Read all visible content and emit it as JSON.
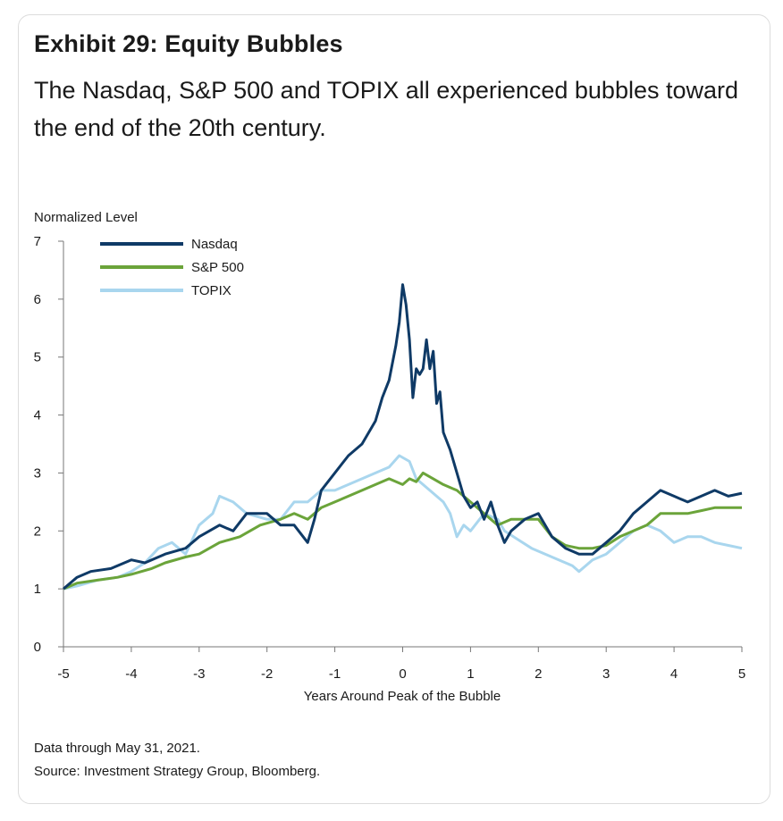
{
  "header": {
    "title": "Exhibit 29: Equity Bubbles",
    "subtitle": "The Nasdaq, S&P 500 and TOPIX all experienced bubbles toward the end of the 20th century."
  },
  "footer": {
    "note": "Data through May 31, 2021.",
    "source": "Source: Investment Strategy Group, Bloomberg."
  },
  "chart_data": {
    "type": "line",
    "ylabel": "Normalized Level",
    "xlabel": "Years Around Peak of the Bubble",
    "xlim": [
      -5,
      5
    ],
    "ylim": [
      0,
      7
    ],
    "xticks": [
      "-5",
      "-4",
      "-3",
      "-2",
      "-1",
      "0",
      "1",
      "2",
      "3",
      "4",
      "5"
    ],
    "yticks": [
      "0",
      "1",
      "2",
      "3",
      "4",
      "5",
      "6",
      "7"
    ],
    "grid": false,
    "legend": "top-left",
    "series": [
      {
        "name": "Nasdaq",
        "color": "#0f3a66",
        "points": [
          [
            -5,
            1.0
          ],
          [
            -4.8,
            1.2
          ],
          [
            -4.6,
            1.3
          ],
          [
            -4.3,
            1.35
          ],
          [
            -4.0,
            1.5
          ],
          [
            -3.8,
            1.45
          ],
          [
            -3.5,
            1.6
          ],
          [
            -3.2,
            1.7
          ],
          [
            -3.0,
            1.9
          ],
          [
            -2.7,
            2.1
          ],
          [
            -2.5,
            2.0
          ],
          [
            -2.3,
            2.3
          ],
          [
            -2.0,
            2.3
          ],
          [
            -1.8,
            2.1
          ],
          [
            -1.6,
            2.1
          ],
          [
            -1.4,
            1.8
          ],
          [
            -1.3,
            2.2
          ],
          [
            -1.2,
            2.7
          ],
          [
            -1.0,
            3.0
          ],
          [
            -0.8,
            3.3
          ],
          [
            -0.6,
            3.5
          ],
          [
            -0.4,
            3.9
          ],
          [
            -0.3,
            4.3
          ],
          [
            -0.2,
            4.6
          ],
          [
            -0.1,
            5.2
          ],
          [
            -0.05,
            5.6
          ],
          [
            0,
            6.25
          ],
          [
            0.05,
            5.9
          ],
          [
            0.1,
            5.3
          ],
          [
            0.15,
            4.3
          ],
          [
            0.2,
            4.8
          ],
          [
            0.25,
            4.7
          ],
          [
            0.3,
            4.8
          ],
          [
            0.35,
            5.3
          ],
          [
            0.4,
            4.8
          ],
          [
            0.45,
            5.1
          ],
          [
            0.5,
            4.2
          ],
          [
            0.55,
            4.4
          ],
          [
            0.6,
            3.7
          ],
          [
            0.7,
            3.4
          ],
          [
            0.8,
            3.0
          ],
          [
            0.9,
            2.6
          ],
          [
            1.0,
            2.4
          ],
          [
            1.1,
            2.5
          ],
          [
            1.2,
            2.2
          ],
          [
            1.3,
            2.5
          ],
          [
            1.4,
            2.1
          ],
          [
            1.5,
            1.8
          ],
          [
            1.6,
            2.0
          ],
          [
            1.8,
            2.2
          ],
          [
            2.0,
            2.3
          ],
          [
            2.2,
            1.9
          ],
          [
            2.4,
            1.7
          ],
          [
            2.6,
            1.6
          ],
          [
            2.8,
            1.6
          ],
          [
            3.0,
            1.8
          ],
          [
            3.2,
            2.0
          ],
          [
            3.4,
            2.3
          ],
          [
            3.6,
            2.5
          ],
          [
            3.8,
            2.7
          ],
          [
            4.0,
            2.6
          ],
          [
            4.2,
            2.5
          ],
          [
            4.4,
            2.6
          ],
          [
            4.6,
            2.7
          ],
          [
            4.8,
            2.6
          ],
          [
            5.0,
            2.65
          ]
        ]
      },
      {
        "name": "S&P 500",
        "color": "#6ba43a",
        "points": [
          [
            -5,
            1.0
          ],
          [
            -4.8,
            1.1
          ],
          [
            -4.5,
            1.15
          ],
          [
            -4.2,
            1.2
          ],
          [
            -4.0,
            1.25
          ],
          [
            -3.7,
            1.35
          ],
          [
            -3.5,
            1.45
          ],
          [
            -3.2,
            1.55
          ],
          [
            -3.0,
            1.6
          ],
          [
            -2.7,
            1.8
          ],
          [
            -2.4,
            1.9
          ],
          [
            -2.1,
            2.1
          ],
          [
            -1.8,
            2.2
          ],
          [
            -1.6,
            2.3
          ],
          [
            -1.4,
            2.2
          ],
          [
            -1.2,
            2.4
          ],
          [
            -1.0,
            2.5
          ],
          [
            -0.8,
            2.6
          ],
          [
            -0.6,
            2.7
          ],
          [
            -0.4,
            2.8
          ],
          [
            -0.2,
            2.9
          ],
          [
            0,
            2.8
          ],
          [
            0.1,
            2.9
          ],
          [
            0.2,
            2.85
          ],
          [
            0.3,
            3.0
          ],
          [
            0.45,
            2.9
          ],
          [
            0.6,
            2.8
          ],
          [
            0.8,
            2.7
          ],
          [
            1.0,
            2.5
          ],
          [
            1.2,
            2.3
          ],
          [
            1.4,
            2.1
          ],
          [
            1.6,
            2.2
          ],
          [
            1.8,
            2.2
          ],
          [
            2.0,
            2.2
          ],
          [
            2.2,
            1.9
          ],
          [
            2.4,
            1.75
          ],
          [
            2.6,
            1.7
          ],
          [
            2.8,
            1.7
          ],
          [
            3.0,
            1.75
          ],
          [
            3.2,
            1.9
          ],
          [
            3.4,
            2.0
          ],
          [
            3.6,
            2.1
          ],
          [
            3.8,
            2.3
          ],
          [
            4.0,
            2.3
          ],
          [
            4.2,
            2.3
          ],
          [
            4.4,
            2.35
          ],
          [
            4.6,
            2.4
          ],
          [
            4.8,
            2.4
          ],
          [
            5.0,
            2.4
          ]
        ]
      },
      {
        "name": "TOPIX",
        "color": "#a9d6ee",
        "points": [
          [
            -5,
            1.0
          ],
          [
            -4.8,
            1.05
          ],
          [
            -4.5,
            1.15
          ],
          [
            -4.2,
            1.2
          ],
          [
            -4.0,
            1.3
          ],
          [
            -3.8,
            1.45
          ],
          [
            -3.6,
            1.7
          ],
          [
            -3.4,
            1.8
          ],
          [
            -3.2,
            1.6
          ],
          [
            -3.0,
            2.1
          ],
          [
            -2.8,
            2.3
          ],
          [
            -2.7,
            2.6
          ],
          [
            -2.5,
            2.5
          ],
          [
            -2.3,
            2.3
          ],
          [
            -2.0,
            2.2
          ],
          [
            -1.8,
            2.2
          ],
          [
            -1.6,
            2.5
          ],
          [
            -1.4,
            2.5
          ],
          [
            -1.2,
            2.7
          ],
          [
            -1.0,
            2.7
          ],
          [
            -0.8,
            2.8
          ],
          [
            -0.6,
            2.9
          ],
          [
            -0.4,
            3.0
          ],
          [
            -0.2,
            3.1
          ],
          [
            -0.05,
            3.3
          ],
          [
            0.1,
            3.2
          ],
          [
            0.2,
            2.9
          ],
          [
            0.4,
            2.7
          ],
          [
            0.6,
            2.5
          ],
          [
            0.7,
            2.3
          ],
          [
            0.8,
            1.9
          ],
          [
            0.9,
            2.1
          ],
          [
            1.0,
            2.0
          ],
          [
            1.2,
            2.3
          ],
          [
            1.4,
            2.2
          ],
          [
            1.5,
            2.0
          ],
          [
            1.7,
            1.85
          ],
          [
            1.9,
            1.7
          ],
          [
            2.1,
            1.6
          ],
          [
            2.3,
            1.5
          ],
          [
            2.5,
            1.4
          ],
          [
            2.6,
            1.3
          ],
          [
            2.8,
            1.5
          ],
          [
            3.0,
            1.6
          ],
          [
            3.2,
            1.8
          ],
          [
            3.4,
            2.0
          ],
          [
            3.6,
            2.1
          ],
          [
            3.8,
            2.0
          ],
          [
            4.0,
            1.8
          ],
          [
            4.2,
            1.9
          ],
          [
            4.4,
            1.9
          ],
          [
            4.6,
            1.8
          ],
          [
            4.8,
            1.75
          ],
          [
            5.0,
            1.7
          ]
        ]
      }
    ]
  }
}
